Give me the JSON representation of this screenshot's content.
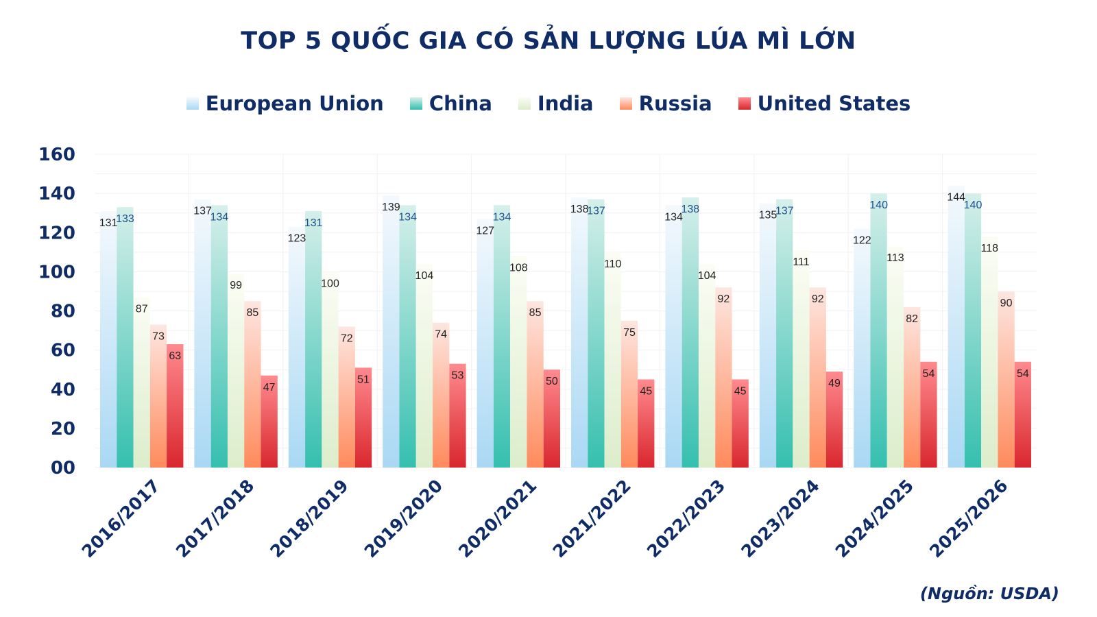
{
  "chart_data": {
    "type": "bar",
    "title": "TOP 5 QUỐC GIA CÓ SẢN LƯỢNG LÚA MÌ LỚN",
    "source": "(Nguồn: USDA)",
    "categories": [
      "2016/2017",
      "2017/2018",
      "2018/2019",
      "2019/2020",
      "2020/2021",
      "2021/2022",
      "2022/2023",
      "2023/2024",
      "2024/2025",
      "2025/2026"
    ],
    "series": [
      {
        "name": "European Union",
        "color_top": "#f4f9fd",
        "color_bottom": "#a9d8f4",
        "label_color": "#222222",
        "values": [
          131,
          137,
          123,
          139,
          127,
          138,
          134,
          135,
          122,
          144
        ]
      },
      {
        "name": "China",
        "color_top": "#d6efea",
        "color_bottom": "#34bfae",
        "label_color": "#1d4f8c",
        "values": [
          133,
          134,
          131,
          134,
          134,
          137,
          138,
          137,
          140,
          140
        ]
      },
      {
        "name": "India",
        "color_top": "#fbfdf5",
        "color_bottom": "#dcedcb",
        "label_color": "#222222",
        "values": [
          87,
          99,
          100,
          104,
          108,
          110,
          104,
          111,
          113,
          118
        ]
      },
      {
        "name": "Russia",
        "color_top": "#fde6e0",
        "color_bottom": "#ff8a5c",
        "label_color": "#222222",
        "values": [
          73,
          85,
          72,
          74,
          85,
          75,
          92,
          92,
          82,
          90
        ]
      },
      {
        "name": "United States",
        "color_top": "#ff8a8e",
        "color_bottom": "#d9272e",
        "label_color": "#222222",
        "values": [
          63,
          47,
          51,
          53,
          50,
          45,
          45,
          49,
          54,
          54
        ]
      }
    ],
    "y_ticks": [
      "00",
      "20",
      "40",
      "60",
      "80",
      "100",
      "120",
      "140",
      "160"
    ],
    "ylim": [
      0,
      160
    ],
    "grid": true,
    "legend": "top-center"
  }
}
